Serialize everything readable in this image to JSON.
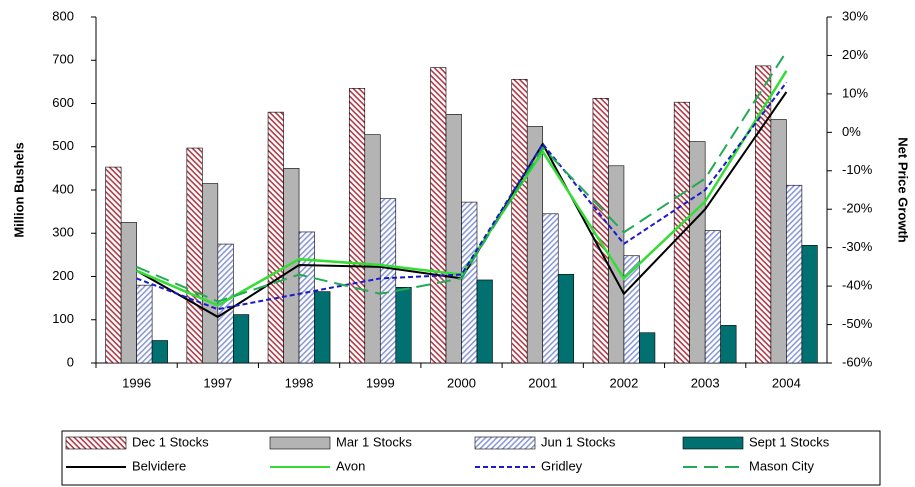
{
  "chart_data": {
    "type": "bar-line",
    "y_label": "Million Bushels",
    "y2_label": "Net Price Growth",
    "categories": [
      "1996",
      "1997",
      "1998",
      "1999",
      "2000",
      "2001",
      "2002",
      "2003",
      "2004"
    ],
    "ylim": [
      0,
      800
    ],
    "yticks": [
      0,
      100,
      200,
      300,
      400,
      500,
      600,
      700,
      800
    ],
    "y2lim": [
      -60,
      30
    ],
    "y2ticks": [
      {
        "value": -60,
        "label": "-60%"
      },
      {
        "value": -50,
        "label": "-50%"
      },
      {
        "value": -40,
        "label": "-40%"
      },
      {
        "value": -30,
        "label": "-30%"
      },
      {
        "value": -20,
        "label": "-20%"
      },
      {
        "value": -10,
        "label": "-10%"
      },
      {
        "value": 0,
        "label": "0%"
      },
      {
        "value": 10,
        "label": "10%"
      },
      {
        "value": 20,
        "label": "20%"
      },
      {
        "value": 30,
        "label": "30%"
      }
    ],
    "legend": "bottom",
    "series": [
      {
        "name": "Dec 1 Stocks",
        "type": "bar",
        "color": "#b03a48",
        "hatch": true,
        "values": [
          453,
          497,
          580,
          635,
          683,
          656,
          612,
          603,
          687
        ]
      },
      {
        "name": "Mar 1 Stocks",
        "type": "bar",
        "color": "#b4b4b4",
        "hatch": false,
        "values": [
          325,
          415,
          450,
          528,
          575,
          547,
          456,
          512,
          563
        ]
      },
      {
        "name": "Jun 1 Stocks",
        "type": "bar",
        "color": "#8c9ad8",
        "hatch": true,
        "values": [
          180,
          275,
          303,
          380,
          372,
          345,
          248,
          306,
          411
        ]
      },
      {
        "name": "Sept 1 Stocks",
        "type": "bar",
        "color": "#007070",
        "hatch": false,
        "values": [
          52,
          112,
          165,
          175,
          192,
          205,
          70,
          87,
          272
        ]
      },
      {
        "name": "Belvidere",
        "type": "line",
        "axis": "y2",
        "color": "#000000",
        "dash": "solid",
        "values": [
          -36,
          -48,
          -34.5,
          -35,
          -38,
          -3,
          -42,
          -20,
          10.5
        ]
      },
      {
        "name": "Avon",
        "type": "line",
        "axis": "y2",
        "color": "#33dd33",
        "dash": "solid",
        "values": [
          -36,
          -45,
          -33,
          -34.5,
          -37,
          -5,
          -38,
          -18,
          16
        ]
      },
      {
        "name": "Gridley",
        "type": "line",
        "axis": "y2",
        "color": "#1a1acc",
        "dash": "short",
        "values": [
          -38,
          -46,
          -42,
          -38,
          -37,
          -3,
          -29,
          -15,
          13
        ]
      },
      {
        "name": "Mason City",
        "type": "line",
        "axis": "y2",
        "color": "#22aa55",
        "dash": "long",
        "values": [
          -35,
          -44,
          -37,
          -42,
          -38,
          -4,
          -26,
          -12,
          21
        ]
      }
    ]
  }
}
